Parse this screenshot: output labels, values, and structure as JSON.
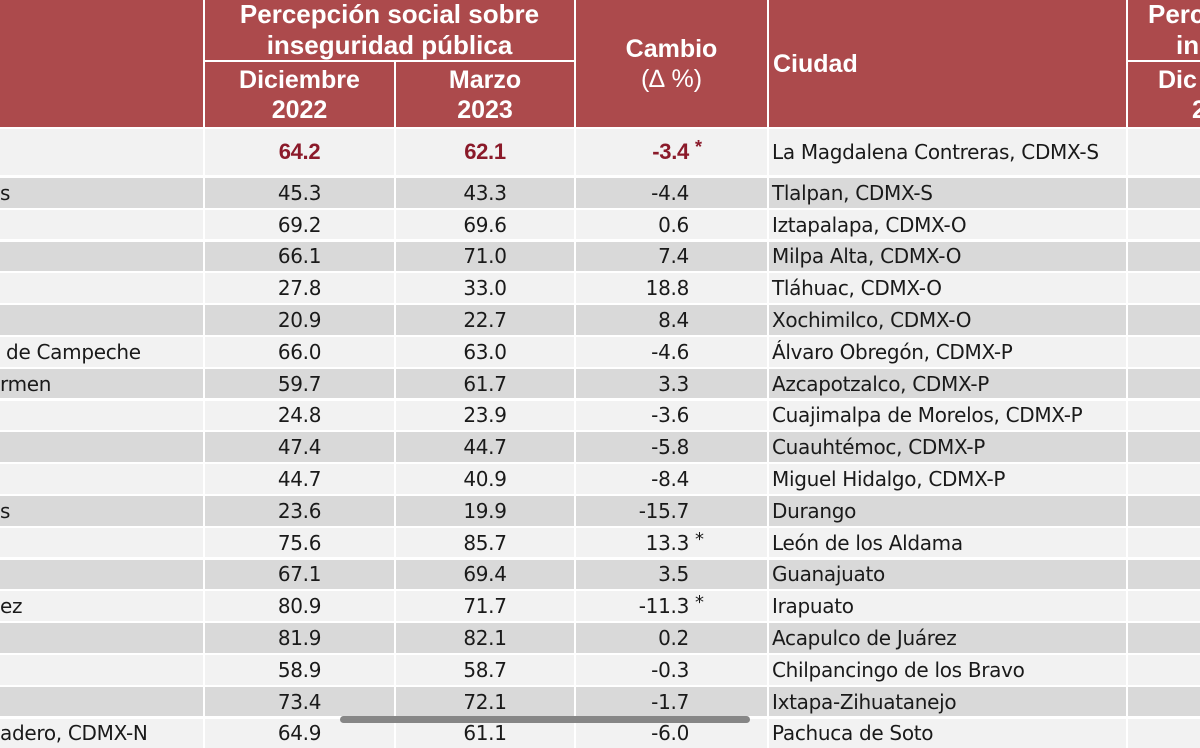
{
  "header": {
    "group_title_line1": "Percepción social sobre",
    "group_title_line2": "inseguridad pública",
    "col_dec_line1": "Diciembre",
    "col_dec_line2": "2022",
    "col_mar_line1": "Marzo",
    "col_mar_line2": "2023",
    "col_change_line1": "Cambio",
    "col_change_line2": "(∆ %)",
    "col_city": "Ciudad",
    "right_group_partial_line1": "Perc",
    "right_group_partial_line2": "in",
    "right_sub_partial_line1": "Dic",
    "right_sub_partial_line2": "2"
  },
  "colors": {
    "header_bg": "#ac4a4c",
    "header_text": "#ffffff",
    "row_gray": "#d9d9d9",
    "row_light": "#f2f2f2",
    "highlight_text": "#8b1a2a"
  },
  "first_row": {
    "left": "",
    "dec_2022": "64.2",
    "mar_2023": "62.1",
    "change": "-3.4",
    "significant": "*",
    "city": "La Magdalena Contreras, CDMX-S"
  },
  "rows": [
    {
      "left": "s",
      "dec_2022": "45.3",
      "mar_2023": "43.3",
      "change": "-4.4",
      "significant": "",
      "city": "Tlalpan, CDMX-S"
    },
    {
      "left": "",
      "dec_2022": "69.2",
      "mar_2023": "69.6",
      "change": "0.6",
      "significant": "",
      "city": "Iztapalapa, CDMX-O"
    },
    {
      "left": "",
      "dec_2022": "66.1",
      "mar_2023": "71.0",
      "change": "7.4",
      "significant": "",
      "city": "Milpa Alta, CDMX-O"
    },
    {
      "left": "",
      "dec_2022": "27.8",
      "mar_2023": "33.0",
      "change": "18.8",
      "significant": "",
      "city": "Tláhuac, CDMX-O"
    },
    {
      "left": "",
      "dec_2022": "20.9",
      "mar_2023": "22.7",
      "change": "8.4",
      "significant": "",
      "city": "Xochimilco, CDMX-O"
    },
    {
      "left": " de Campeche",
      "dec_2022": "66.0",
      "mar_2023": "63.0",
      "change": "-4.6",
      "significant": "",
      "city": "Álvaro Obregón, CDMX-P"
    },
    {
      "left": "rmen",
      "dec_2022": "59.7",
      "mar_2023": "61.7",
      "change": "3.3",
      "significant": "",
      "city": "Azcapotzalco, CDMX-P"
    },
    {
      "left": "",
      "dec_2022": "24.8",
      "mar_2023": "23.9",
      "change": "-3.6",
      "significant": "",
      "city": "Cuajimalpa de Morelos, CDMX-P"
    },
    {
      "left": "",
      "dec_2022": "47.4",
      "mar_2023": "44.7",
      "change": "-5.8",
      "significant": "",
      "city": "Cuauhtémoc, CDMX-P"
    },
    {
      "left": "",
      "dec_2022": "44.7",
      "mar_2023": "40.9",
      "change": "-8.4",
      "significant": "",
      "city": "Miguel Hidalgo, CDMX-P"
    },
    {
      "left": "s",
      "dec_2022": "23.6",
      "mar_2023": "19.9",
      "change": "-15.7",
      "significant": "",
      "city": "Durango"
    },
    {
      "left": "",
      "dec_2022": "75.6",
      "mar_2023": "85.7",
      "change": "13.3",
      "significant": "*",
      "city": "León de los Aldama"
    },
    {
      "left": "",
      "dec_2022": "67.1",
      "mar_2023": "69.4",
      "change": "3.5",
      "significant": "",
      "city": "Guanajuato"
    },
    {
      "left": "ez",
      "dec_2022": "80.9",
      "mar_2023": "71.7",
      "change": "-11.3",
      "significant": "*",
      "city": "Irapuato"
    },
    {
      "left": "",
      "dec_2022": "81.9",
      "mar_2023": "82.1",
      "change": "0.2",
      "significant": "",
      "city": "Acapulco de Juárez"
    },
    {
      "left": "",
      "dec_2022": "58.9",
      "mar_2023": "58.7",
      "change": "-0.3",
      "significant": "",
      "city": "Chilpancingo de los Bravo"
    },
    {
      "left": "",
      "dec_2022": "73.4",
      "mar_2023": "72.1",
      "change": "-1.7",
      "significant": "",
      "city": "Ixtapa-Zihuatanejo"
    },
    {
      "left": "adero, CDMX-N",
      "dec_2022": "64.9",
      "mar_2023": "61.1",
      "change": "-6.0",
      "significant": "",
      "city": "Pachuca de Soto"
    }
  ]
}
